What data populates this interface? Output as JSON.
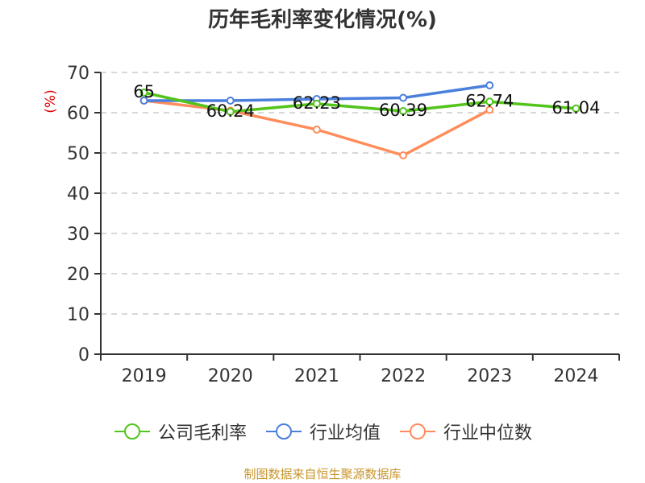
{
  "title": "历年毛利率变化情况(%)",
  "source_note": "制图数据来自恒生聚源数据库",
  "legend": [
    {
      "label": "公司毛利率",
      "color": "#52c41a"
    },
    {
      "label": "行业均值",
      "color": "#4a7fdc"
    },
    {
      "label": "行业中位数",
      "color": "#ff8c5a"
    }
  ],
  "chart_data": {
    "type": "line",
    "title": "历年毛利率变化情况(%)",
    "xlabel": "",
    "ylabel": "(%)",
    "ylim": [
      0,
      70
    ],
    "yticks": [
      0,
      10,
      20,
      30,
      40,
      50,
      60,
      70
    ],
    "grid": true,
    "legend_position": "bottom",
    "categories": [
      "2019",
      "2020",
      "2021",
      "2022",
      "2023",
      "2024"
    ],
    "series": [
      {
        "name": "公司毛利率",
        "color": "#52c41a",
        "values": [
          65,
          60.24,
          62.23,
          60.39,
          62.74,
          61.04
        ],
        "labels": [
          "65",
          "60.24",
          "62.23",
          "60.39",
          "62.74",
          "61.04"
        ]
      },
      {
        "name": "行业均值",
        "color": "#4a7fdc",
        "values": [
          63.0,
          63.0,
          63.4,
          63.7,
          66.8,
          null
        ]
      },
      {
        "name": "行业中位数",
        "color": "#ff8c5a",
        "values": [
          63.0,
          60.5,
          55.8,
          49.4,
          60.7,
          null
        ]
      }
    ]
  }
}
